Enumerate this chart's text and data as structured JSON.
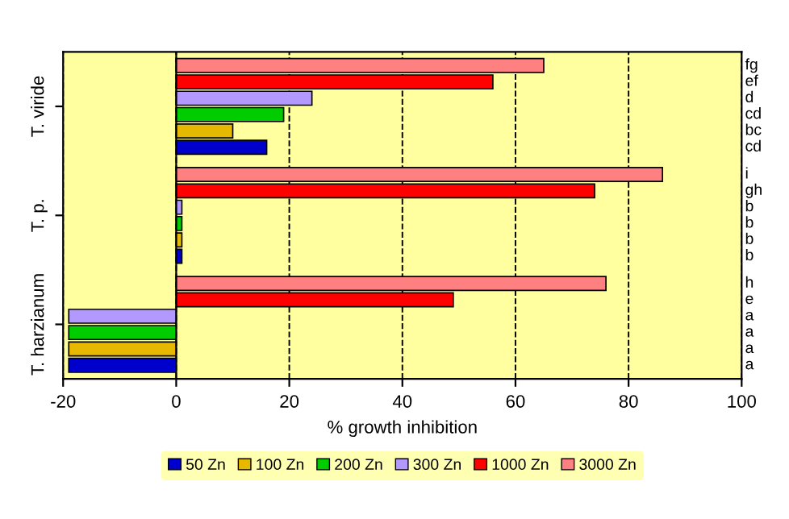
{
  "chart_data": {
    "type": "bar",
    "orientation": "horizontal",
    "xlabel": "% growth inhibition",
    "categories": [
      "T. viride",
      "T. p.",
      "T. harzianum"
    ],
    "xlim": [
      -20,
      100
    ],
    "xticks": [
      -20,
      0,
      20,
      40,
      60,
      80,
      100
    ],
    "grid": "x",
    "legend": "bottom",
    "annotations": [
      "fg",
      "ef",
      "d",
      "cd",
      "bc",
      "cd",
      "i",
      "gh",
      "b",
      "b",
      "b",
      "b",
      "h",
      "e",
      "a",
      "a",
      "a",
      "a"
    ],
    "series": [
      {
        "name": "50 Zn",
        "color": "#0000cc",
        "values": [
          16,
          1,
          -19
        ]
      },
      {
        "name": "100 Zn",
        "color": "#e6b800",
        "values": [
          10,
          1,
          -19
        ]
      },
      {
        "name": "200 Zn",
        "color": "#00cc00",
        "values": [
          19,
          1,
          -19
        ]
      },
      {
        "name": "300 Zn",
        "color": "#b399ff",
        "values": [
          24,
          1,
          -19
        ]
      },
      {
        "name": "1000 Zn",
        "color": "#ff0000",
        "values": [
          56,
          74,
          49
        ]
      },
      {
        "name": "3000 Zn",
        "color": "#ff8080",
        "values": [
          65,
          86,
          76
        ]
      }
    ]
  }
}
